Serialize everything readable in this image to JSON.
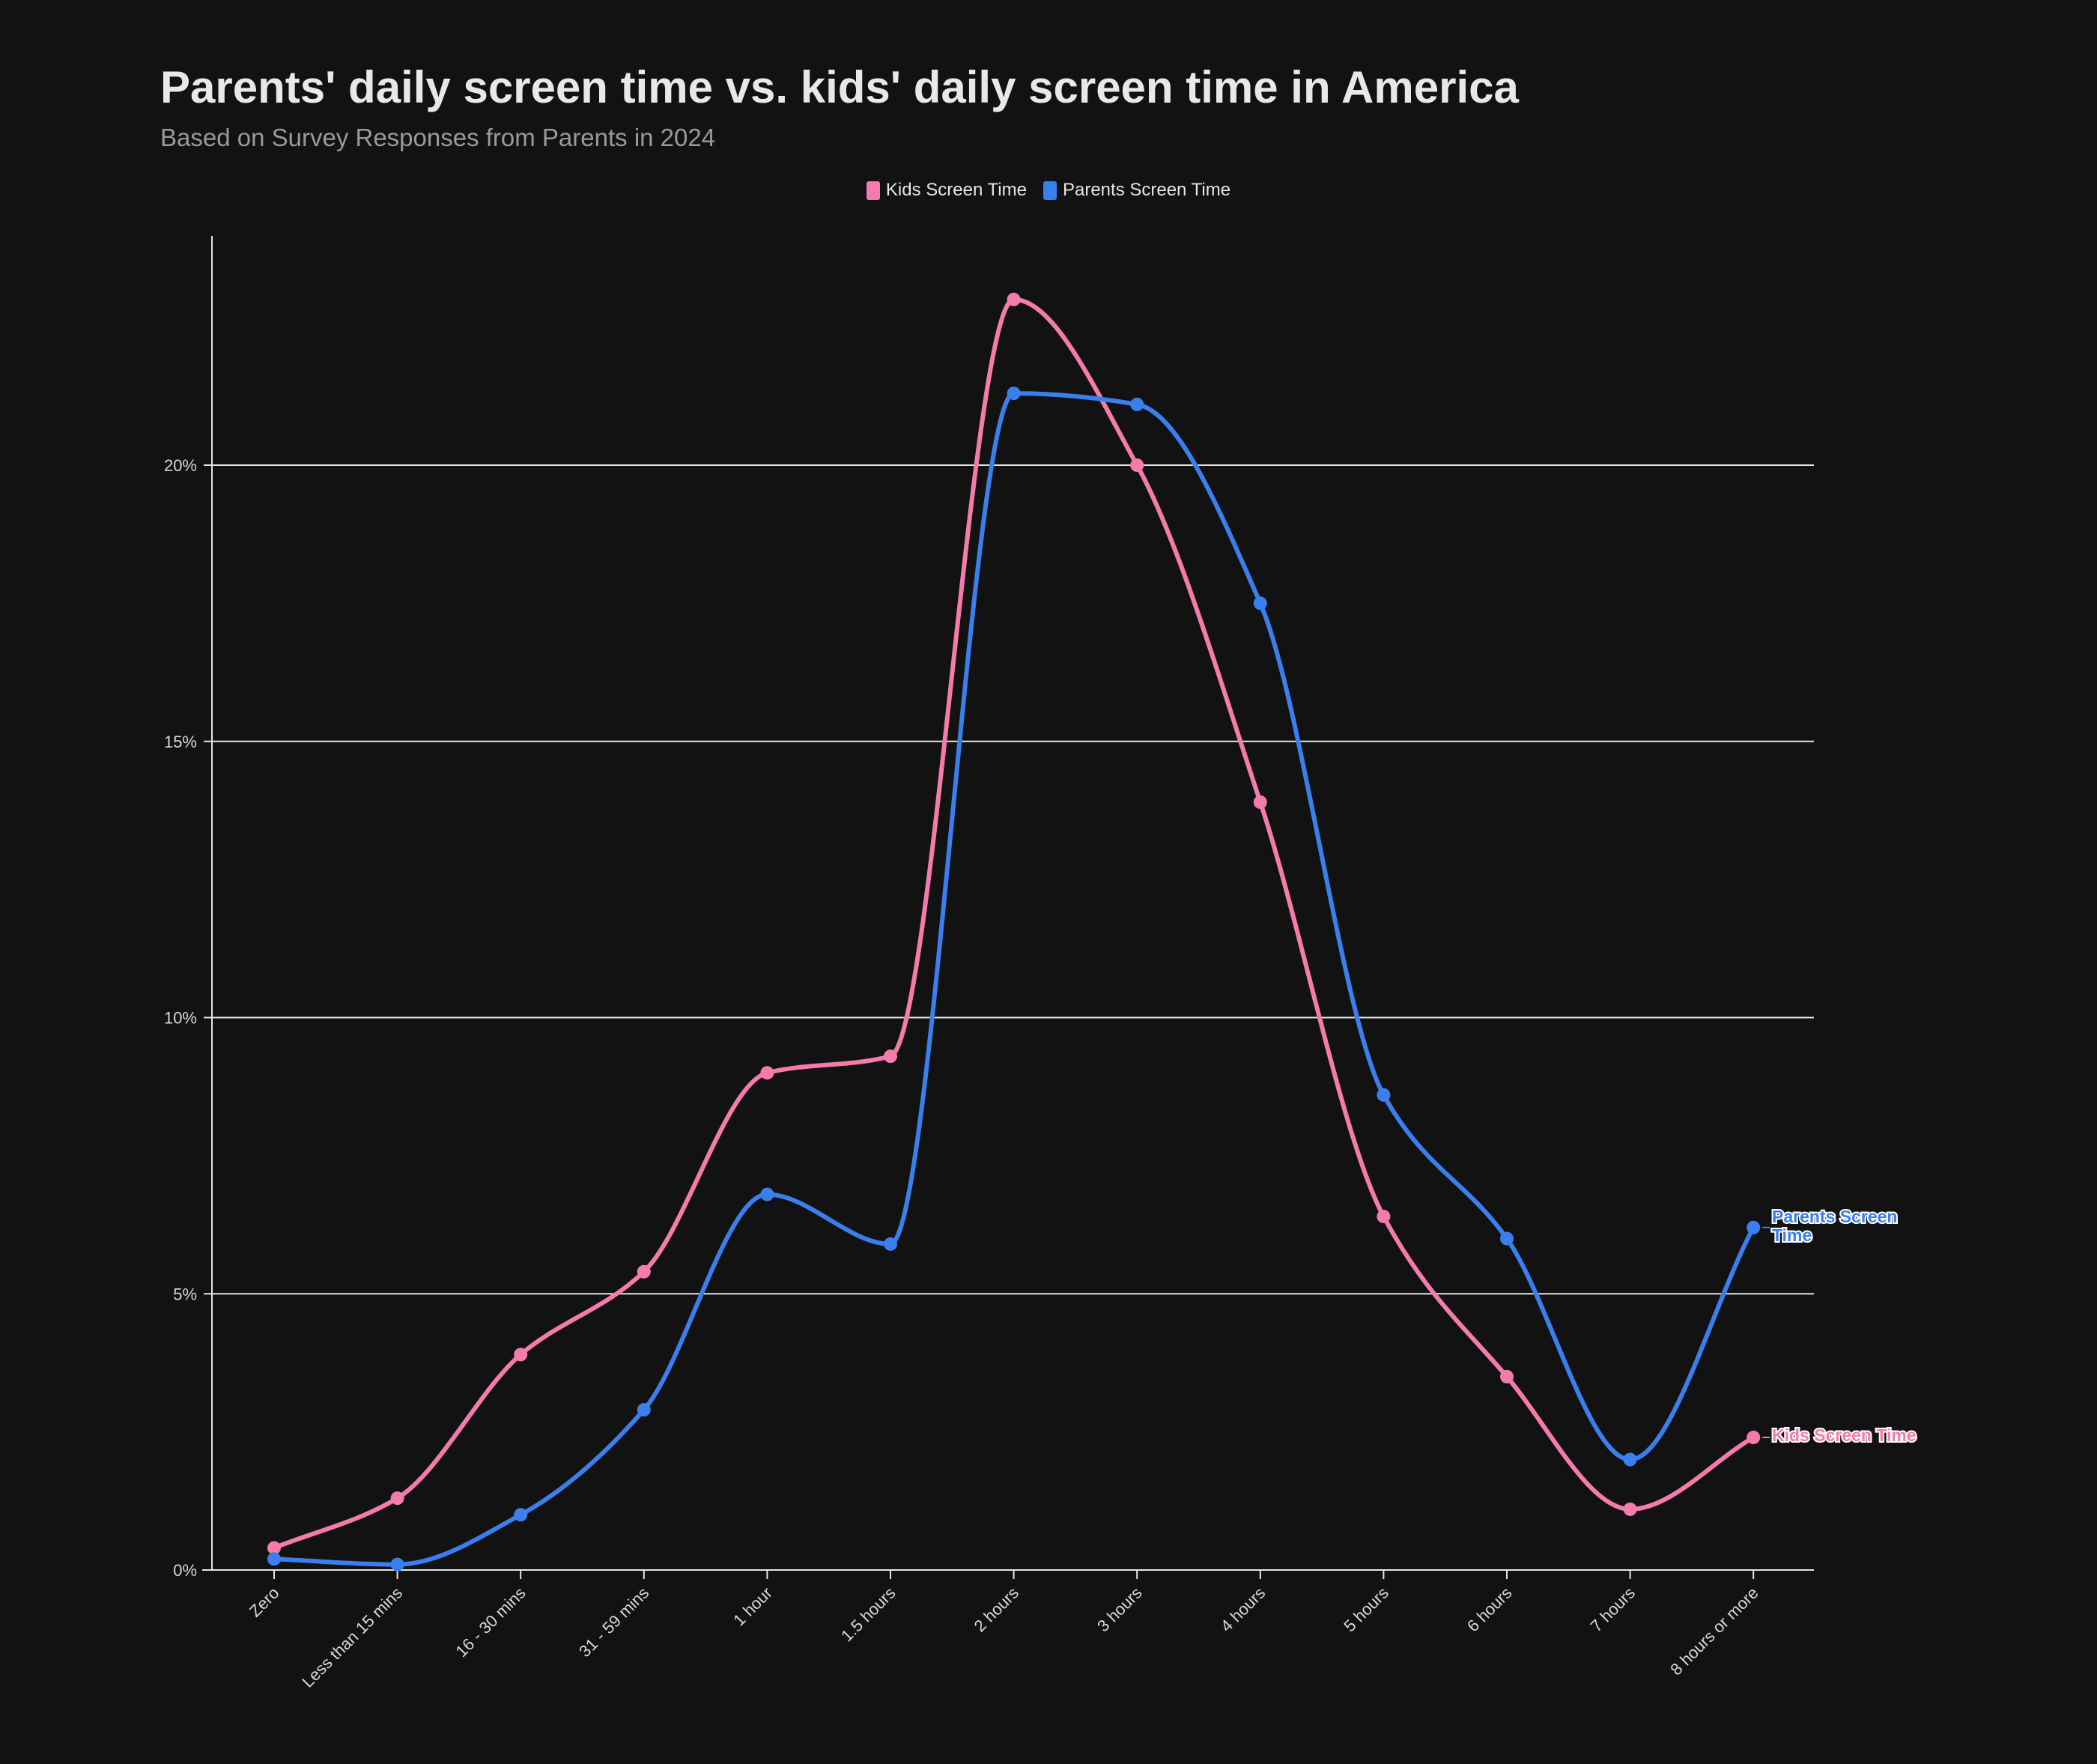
{
  "title": "Parents' daily screen time vs. kids' daily screen time in America",
  "subtitle": "Based on Survey Responses from Parents in 2024",
  "colors": {
    "kids": "#f47bab",
    "parents": "#3b7eed",
    "background": "#121212",
    "grid": "#e6e6e6"
  },
  "chart_data": {
    "type": "line",
    "title": "Parents' daily screen time vs. kids' daily screen time in America",
    "subtitle": "Based on Survey Responses from Parents in 2024",
    "categories": [
      "Zero",
      "Less than 15 mins",
      "16 - 30 mins",
      "31 - 59 mins",
      "1 hour",
      "1.5 hours",
      "2 hours",
      "3 hours",
      "4 hours",
      "5 hours",
      "6 hours",
      "7 hours",
      "8 hours or more"
    ],
    "series": [
      {
        "name": "Kids Screen Time",
        "color": "#f47bab",
        "values": [
          0.4,
          1.3,
          3.9,
          5.4,
          9.0,
          9.3,
          23.0,
          20.0,
          13.9,
          6.4,
          3.5,
          1.1,
          2.4
        ]
      },
      {
        "name": "Parents Screen Time",
        "color": "#3b7eed",
        "values": [
          0.2,
          0.1,
          1.0,
          2.9,
          6.8,
          5.9,
          21.3,
          21.1,
          17.5,
          8.6,
          6.0,
          2.0,
          6.2
        ]
      }
    ],
    "yticks": [
      "0%",
      "5%",
      "10%",
      "15%",
      "20%"
    ],
    "ylim": [
      0,
      24
    ],
    "xlabel": "",
    "ylabel": "",
    "grid": "horizontal",
    "legend_placement": "top-center",
    "end_labels": {
      "kids": "Kids Screen Time",
      "parents_line1": "Parents Screen",
      "parents_line2": "Time"
    }
  }
}
